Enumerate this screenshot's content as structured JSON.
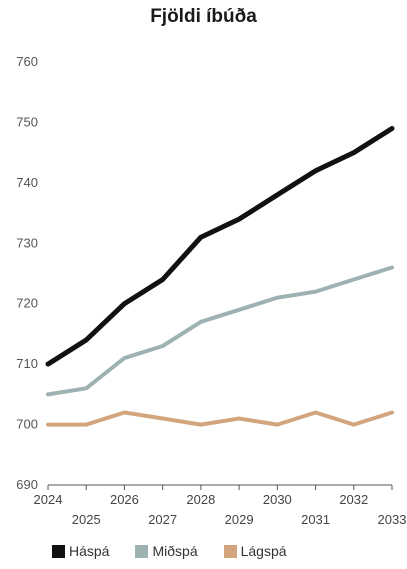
{
  "chart_data": {
    "type": "line",
    "title": "Fjöldi íbúða",
    "xlabel": "",
    "ylabel": "",
    "ylim": [
      690,
      760
    ],
    "yticks": [
      690,
      700,
      710,
      720,
      730,
      740,
      750,
      760
    ],
    "x": [
      2024,
      2025,
      2026,
      2027,
      2028,
      2029,
      2030,
      2031,
      2032,
      2033
    ],
    "x_tick_labels": [
      "2024",
      "2025",
      "2026",
      "2027",
      "2028",
      "2029",
      "2030",
      "2031",
      "2032",
      "2033"
    ],
    "grid": false,
    "legend_position": "bottom",
    "series": [
      {
        "name": "Háspá",
        "color": "#111111",
        "values": [
          710,
          714,
          720,
          724,
          731,
          734,
          738,
          742,
          745,
          749
        ]
      },
      {
        "name": "Miðspá",
        "color": "#9fb2b2",
        "values": [
          705,
          706,
          711,
          713,
          717,
          719,
          721,
          722,
          724,
          726
        ]
      },
      {
        "name": "Lágspá",
        "color": "#d2a57e",
        "values": [
          700,
          700,
          702,
          701,
          700,
          701,
          700,
          702,
          700,
          702
        ]
      }
    ]
  }
}
